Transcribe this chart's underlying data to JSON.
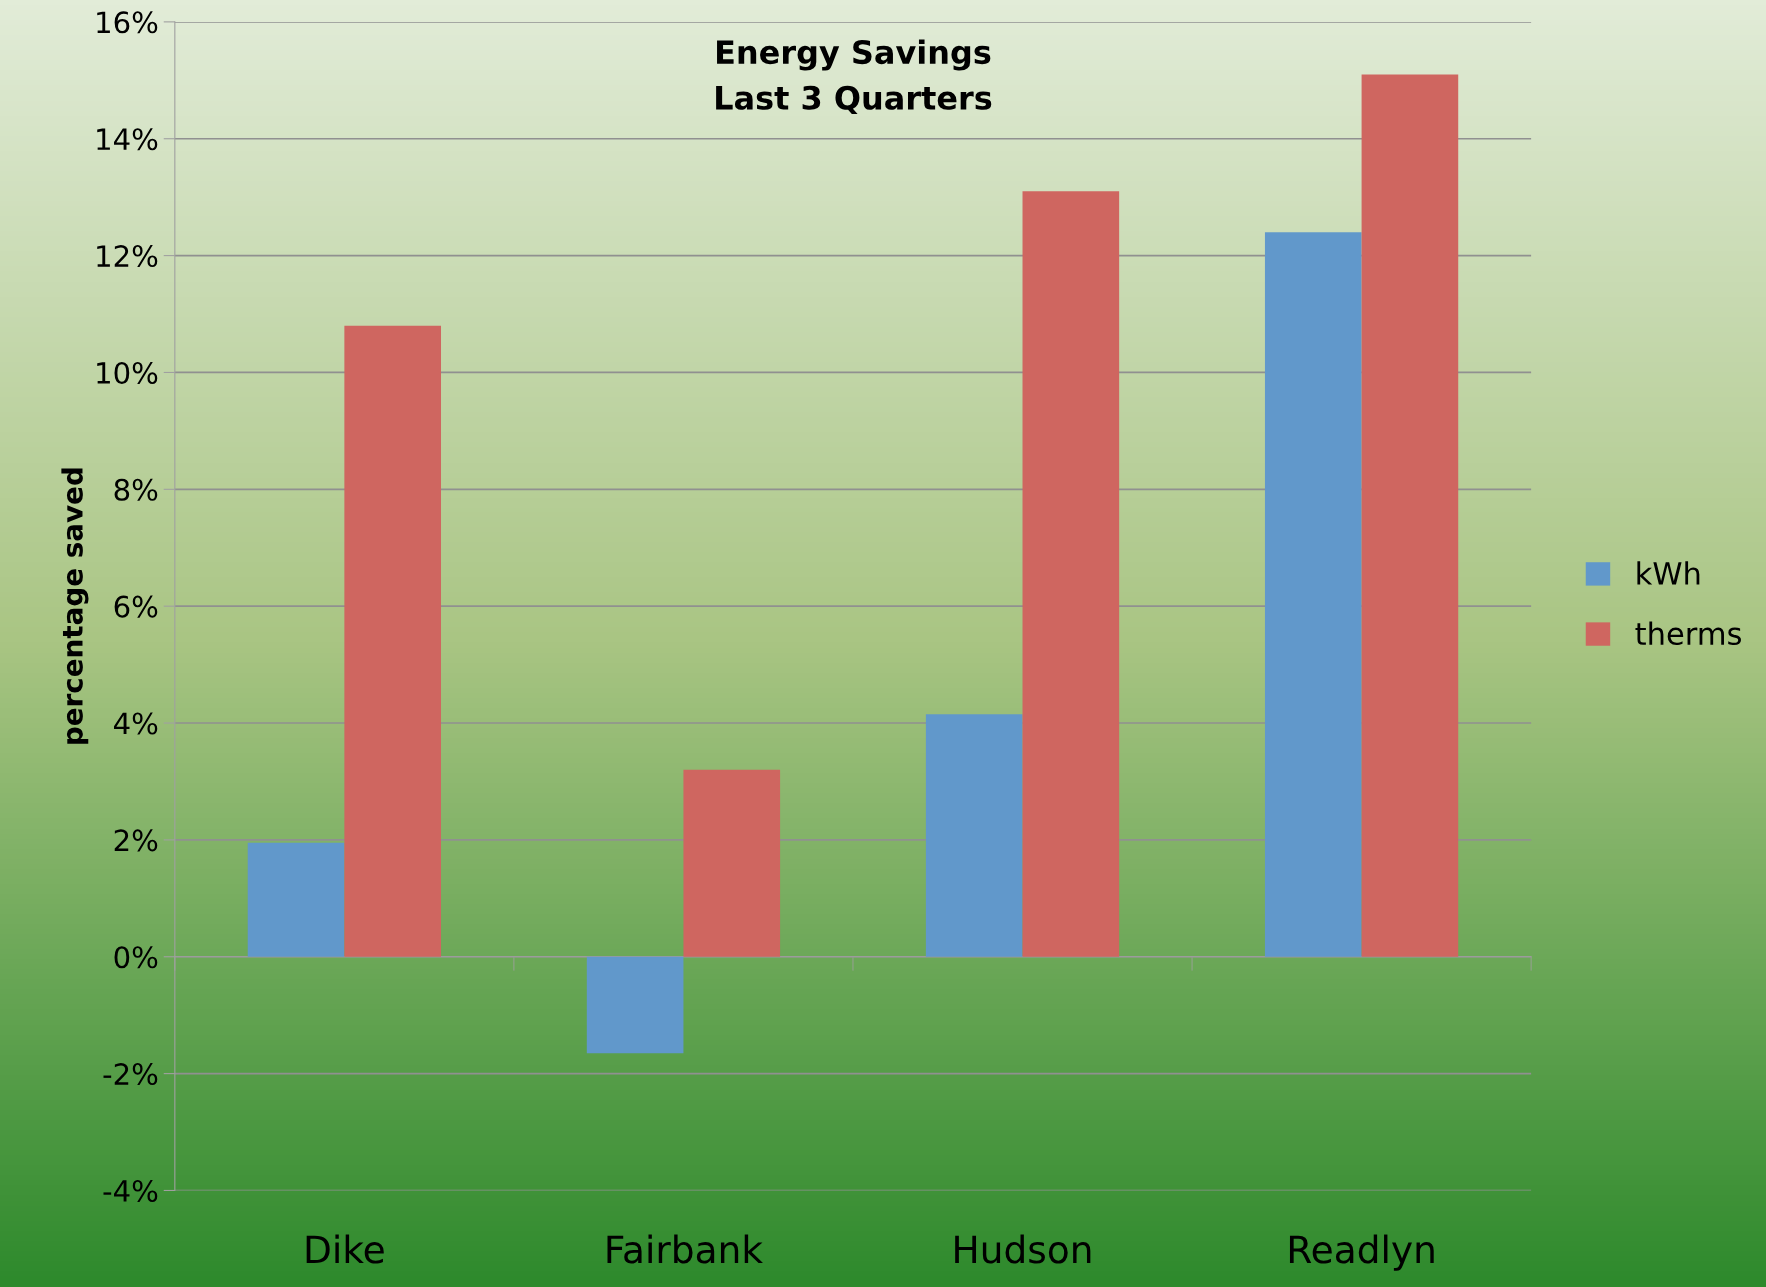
{
  "chart_data": {
    "type": "bar",
    "title": "Energy Savings\nLast 3 Quarters",
    "ylabel": "percentage saved",
    "categories": [
      "Dike",
      "Fairbank",
      "Hudson",
      "Readlyn"
    ],
    "series": [
      {
        "name": "kWh",
        "color": "#6198cb",
        "values": [
          1.95,
          -1.65,
          4.15,
          12.4
        ]
      },
      {
        "name": "therms",
        "color": "#cf6660",
        "values": [
          10.8,
          3.2,
          13.1,
          15.1
        ]
      }
    ],
    "ylim": [
      -4,
      16
    ],
    "yticks": [
      {
        "value": -4,
        "label": "-4%"
      },
      {
        "value": -2,
        "label": "-2%"
      },
      {
        "value": 0,
        "label": "0%"
      },
      {
        "value": 2,
        "label": "2%"
      },
      {
        "value": 4,
        "label": "4%"
      },
      {
        "value": 6,
        "label": "6%"
      },
      {
        "value": 8,
        "label": "8%"
      },
      {
        "value": 10,
        "label": "10%"
      },
      {
        "value": 12,
        "label": "12%"
      },
      {
        "value": 14,
        "label": "14%"
      },
      {
        "value": 16,
        "label": "16%"
      }
    ],
    "grid": "y",
    "legend": "right"
  }
}
